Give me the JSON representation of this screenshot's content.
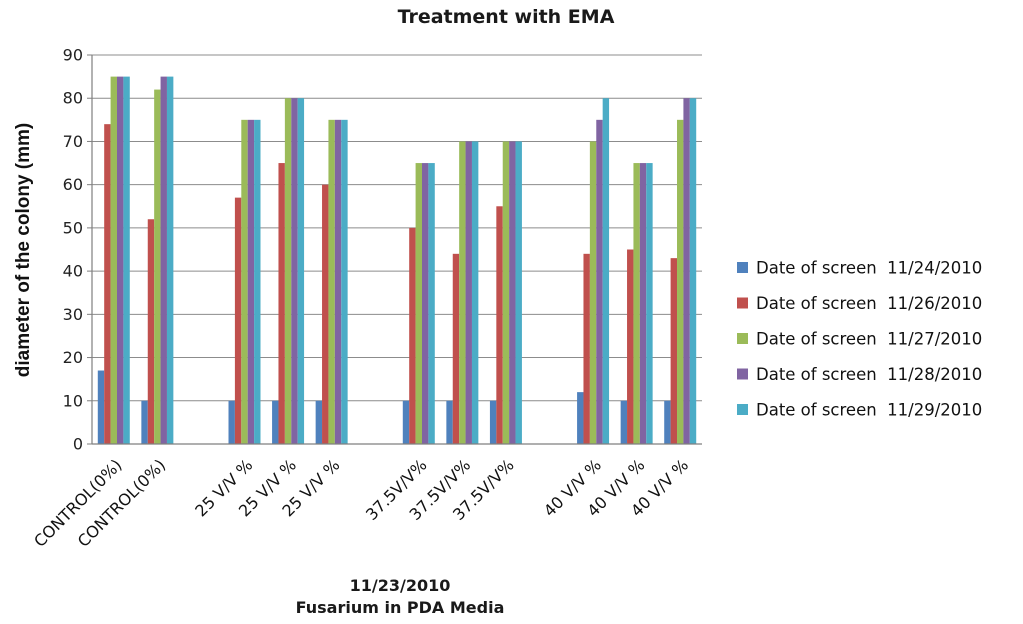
{
  "chart_data": {
    "type": "bar",
    "title": "Treatment with EMA",
    "xlabel_lines": [
      "11/23/2010",
      "Fusarium in PDA Media"
    ],
    "ylabel": "diameter of the colony (mm)",
    "ylim": [
      0,
      90
    ],
    "yticks": [
      0,
      10,
      20,
      30,
      40,
      50,
      60,
      70,
      80,
      90
    ],
    "grid": true,
    "legend_position": "right",
    "categories": [
      "CONTROL(0%)",
      "CONTROL(0%)",
      "",
      "25 V/V %",
      "25 V/V %",
      "25 V/V %",
      "",
      "37.5V/V%",
      "37.5V/V%",
      "37.5V/V%",
      "",
      "40 V/V %",
      "40 V/V %",
      "40 V/V %"
    ],
    "series": [
      {
        "name": "Date of screen  11/24/2010",
        "color": "#4f81bd",
        "values": [
          17,
          10,
          null,
          10,
          10,
          10,
          null,
          10,
          10,
          10,
          null,
          12,
          10,
          10
        ]
      },
      {
        "name": "Date of screen  11/26/2010",
        "color": "#c0504d",
        "values": [
          74,
          52,
          null,
          57,
          65,
          60,
          null,
          50,
          44,
          55,
          null,
          44,
          45,
          43
        ]
      },
      {
        "name": "Date of screen  11/27/2010",
        "color": "#9bbb59",
        "values": [
          85,
          82,
          null,
          75,
          80,
          75,
          null,
          65,
          70,
          70,
          null,
          70,
          65,
          75
        ]
      },
      {
        "name": "Date of screen  11/28/2010",
        "color": "#8064a2",
        "values": [
          85,
          85,
          null,
          75,
          80,
          75,
          null,
          65,
          70,
          70,
          null,
          75,
          65,
          80
        ]
      },
      {
        "name": "Date of screen  11/29/2010",
        "color": "#4bacc6",
        "values": [
          85,
          85,
          null,
          75,
          80,
          75,
          null,
          65,
          70,
          70,
          null,
          80,
          65,
          80
        ]
      }
    ]
  }
}
